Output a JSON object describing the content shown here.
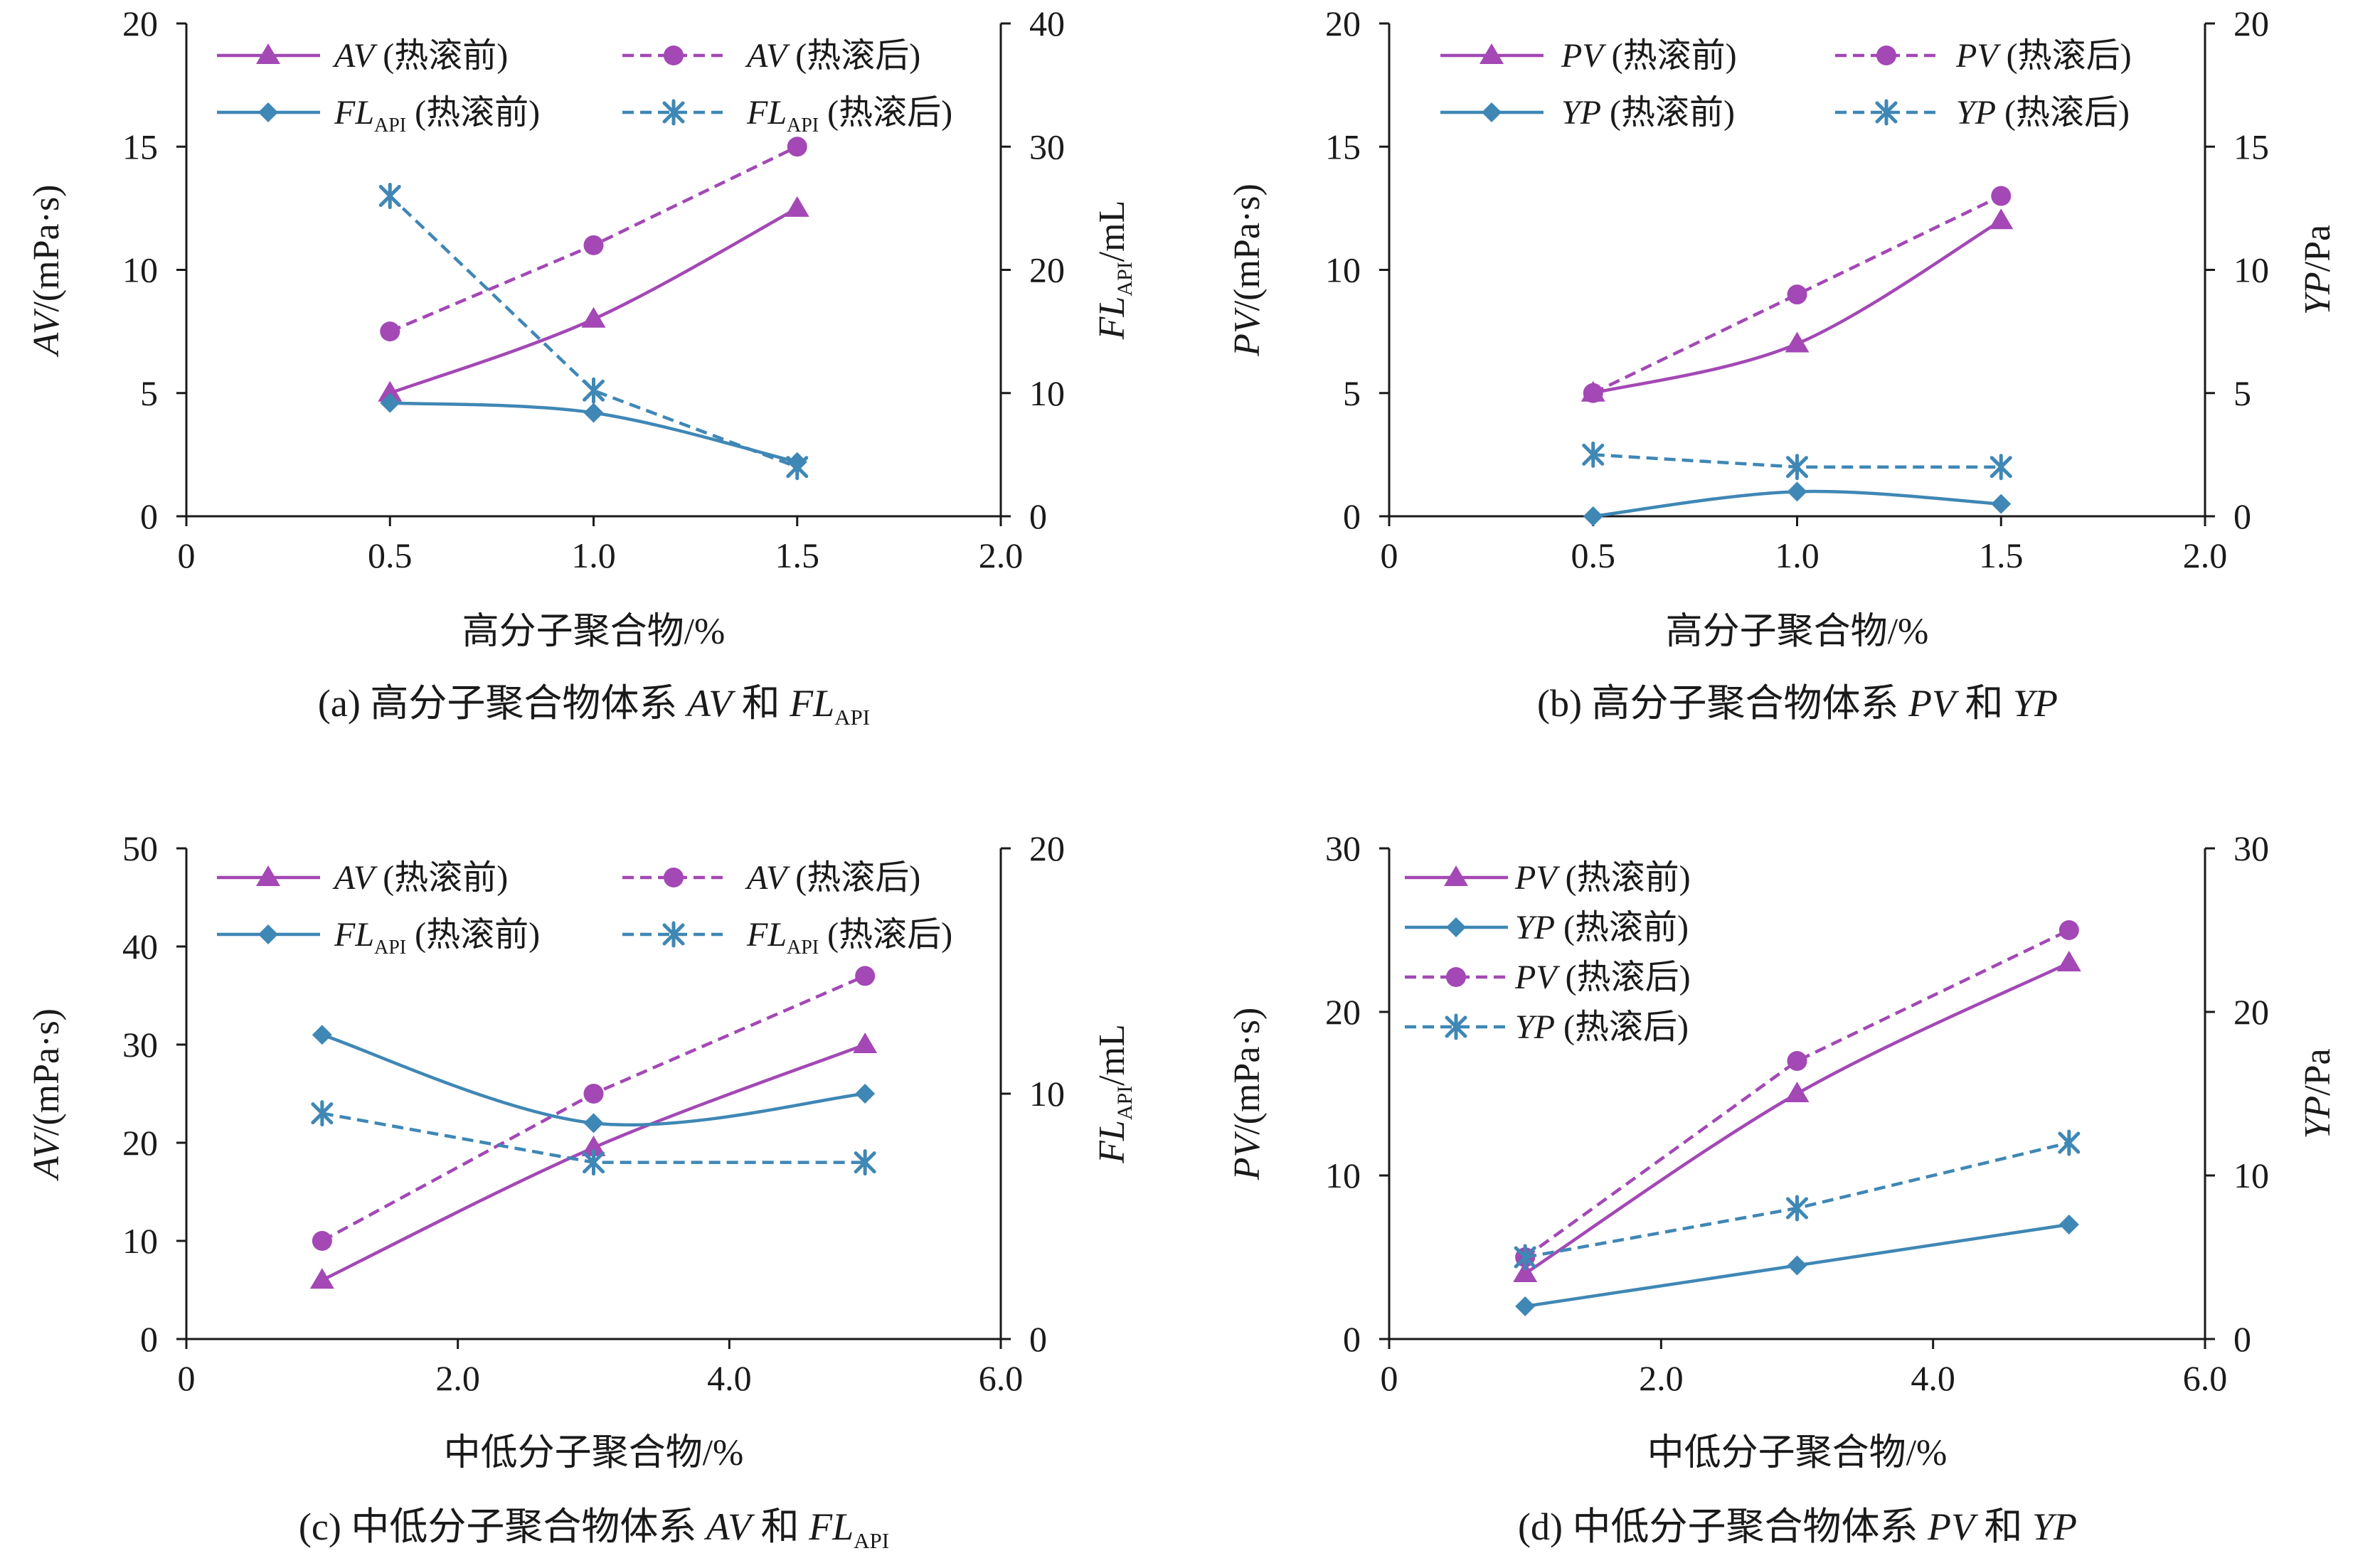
{
  "colors": {
    "purple": "#a348b5",
    "blue": "#3f87b5",
    "axis": "#1a1a1a"
  },
  "chart_data": [
    {
      "type": "line",
      "caption": {
        "prefix": "(a) 高分子聚合物体系 ",
        "v1": "AV",
        "mid": " 和 ",
        "v2": "FL",
        "v2sub": "API"
      },
      "xlabel": "高分子聚合物/%",
      "ylabel": {
        "var": "AV",
        "sub": "",
        "unit": "/(mPa·s)"
      },
      "y2label": {
        "var": "FL",
        "sub": "API",
        "unit": "/mL"
      },
      "xlim": [
        0,
        2.0
      ],
      "xticks": [
        "0",
        "0.5",
        "1.0",
        "1.5",
        "2.0"
      ],
      "ylim": [
        0,
        20
      ],
      "yticks": [
        "0",
        "5",
        "10",
        "15",
        "20"
      ],
      "y2lim": [
        0,
        40
      ],
      "y2ticks": [
        "0",
        "10",
        "20",
        "30",
        "40"
      ],
      "legend": {
        "columns": 2,
        "placement": "top"
      },
      "series": [
        {
          "var": "AV",
          "sub": "",
          "note": " (热滚前)",
          "axis": "left",
          "color": "purple",
          "dash": false,
          "marker": "triangle",
          "x": [
            0.5,
            1.0,
            1.5
          ],
          "values": [
            5.0,
            8.0,
            12.5
          ]
        },
        {
          "var": "AV",
          "sub": "",
          "note": " (热滚后)",
          "axis": "left",
          "color": "purple",
          "dash": true,
          "marker": "circle",
          "x": [
            0.5,
            1.0,
            1.5
          ],
          "values": [
            7.5,
            11.0,
            15.0
          ]
        },
        {
          "var": "FL",
          "sub": "API",
          "note": " (热滚前)",
          "axis": "right",
          "color": "blue",
          "dash": false,
          "marker": "diamond",
          "x": [
            0.5,
            1.0,
            1.5
          ],
          "values": [
            9.2,
            8.4,
            4.4
          ]
        },
        {
          "var": "FL",
          "sub": "API",
          "note": " (热滚后)",
          "axis": "right",
          "color": "blue",
          "dash": true,
          "marker": "asterisk",
          "x": [
            0.5,
            1.0,
            1.5
          ],
          "values": [
            26.0,
            10.2,
            4.0
          ]
        }
      ]
    },
    {
      "type": "line",
      "caption": {
        "prefix": "(b) 高分子聚合物体系 ",
        "v1": "PV",
        "mid": " 和 ",
        "v2": "YP",
        "v2sub": ""
      },
      "xlabel": "高分子聚合物/%",
      "ylabel": {
        "var": "PV",
        "sub": "",
        "unit": "/(mPa·s)"
      },
      "y2label": {
        "var": "YP",
        "sub": "",
        "unit": "/Pa"
      },
      "xlim": [
        0,
        2.0
      ],
      "xticks": [
        "0",
        "0.5",
        "1.0",
        "1.5",
        "2.0"
      ],
      "ylim": [
        0,
        20
      ],
      "yticks": [
        "0",
        "5",
        "10",
        "15",
        "20"
      ],
      "y2lim": [
        0,
        20
      ],
      "y2ticks": [
        "0",
        "5",
        "10",
        "15",
        "20"
      ],
      "legend": {
        "columns": 2,
        "placement": "top"
      },
      "series": [
        {
          "var": "PV",
          "sub": "",
          "note": " (热滚前)",
          "axis": "left",
          "color": "purple",
          "dash": false,
          "marker": "triangle",
          "x": [
            0.5,
            1.0,
            1.5
          ],
          "values": [
            5.0,
            7.0,
            12.0
          ]
        },
        {
          "var": "PV",
          "sub": "",
          "note": " (热滚后)",
          "axis": "left",
          "color": "purple",
          "dash": true,
          "marker": "circle",
          "x": [
            0.5,
            1.0,
            1.5
          ],
          "values": [
            5.0,
            9.0,
            13.0
          ]
        },
        {
          "var": "YP",
          "sub": "",
          "note": " (热滚前)",
          "axis": "right",
          "color": "blue",
          "dash": false,
          "marker": "diamond",
          "x": [
            0.5,
            1.0,
            1.5
          ],
          "values": [
            0.0,
            1.0,
            0.5
          ]
        },
        {
          "var": "YP",
          "sub": "",
          "note": " (热滚后)",
          "axis": "right",
          "color": "blue",
          "dash": true,
          "marker": "asterisk",
          "x": [
            0.5,
            1.0,
            1.5
          ],
          "values": [
            2.5,
            2.0,
            2.0
          ]
        }
      ]
    },
    {
      "type": "line",
      "caption": {
        "prefix": "(c) 中低分子聚合物体系 ",
        "v1": "AV",
        "mid": " 和 ",
        "v2": "FL",
        "v2sub": "API"
      },
      "xlabel": "中低分子聚合物/%",
      "ylabel": {
        "var": "AV",
        "sub": "",
        "unit": "/(mPa·s)"
      },
      "y2label": {
        "var": "FL",
        "sub": "API",
        "unit": "/mL"
      },
      "xlim": [
        0,
        6.0
      ],
      "xticks": [
        "0",
        "2.0",
        "4.0",
        "6.0"
      ],
      "ylim": [
        0,
        50
      ],
      "yticks": [
        "0",
        "10",
        "20",
        "30",
        "40",
        "50"
      ],
      "y2lim": [
        0,
        20
      ],
      "y2ticks": [
        "0",
        "10",
        "20"
      ],
      "legend": {
        "columns": 2,
        "placement": "top"
      },
      "series": [
        {
          "var": "AV",
          "sub": "",
          "note": " (热滚前)",
          "axis": "left",
          "color": "purple",
          "dash": false,
          "marker": "triangle",
          "x": [
            1.0,
            3.0,
            5.0
          ],
          "values": [
            6.0,
            19.5,
            30.0
          ]
        },
        {
          "var": "AV",
          "sub": "",
          "note": " (热滚后)",
          "axis": "left",
          "color": "purple",
          "dash": true,
          "marker": "circle",
          "x": [
            1.0,
            3.0,
            5.0
          ],
          "values": [
            10.0,
            25.0,
            37.0
          ]
        },
        {
          "var": "FL",
          "sub": "API",
          "note": " (热滚前)",
          "axis": "right",
          "color": "blue",
          "dash": false,
          "marker": "diamond",
          "x": [
            1.0,
            3.0,
            5.0
          ],
          "values": [
            12.4,
            8.8,
            10.0
          ]
        },
        {
          "var": "FL",
          "sub": "API",
          "note": " (热滚后)",
          "axis": "right",
          "color": "blue",
          "dash": true,
          "marker": "asterisk",
          "x": [
            1.0,
            3.0,
            5.0
          ],
          "values": [
            9.2,
            7.2,
            7.2
          ]
        }
      ]
    },
    {
      "type": "line",
      "caption": {
        "prefix": "(d) 中低分子聚合物体系 ",
        "v1": "PV",
        "mid": " 和 ",
        "v2": "YP",
        "v2sub": ""
      },
      "xlabel": "中低分子聚合物/%",
      "ylabel": {
        "var": "PV",
        "sub": "",
        "unit": "/(mPa·s)"
      },
      "y2label": {
        "var": "YP",
        "sub": "",
        "unit": "/Pa"
      },
      "xlim": [
        0,
        6.0
      ],
      "xticks": [
        "0",
        "2.0",
        "4.0",
        "6.0"
      ],
      "ylim": [
        0,
        30
      ],
      "yticks": [
        "0",
        "10",
        "20",
        "30"
      ],
      "y2lim": [
        0,
        30
      ],
      "y2ticks": [
        "0",
        "10",
        "20",
        "30"
      ],
      "legend": {
        "columns": 1,
        "placement": "top-left"
      },
      "series": [
        {
          "var": "PV",
          "sub": "",
          "note": " (热滚前)",
          "axis": "left",
          "color": "purple",
          "dash": false,
          "marker": "triangle",
          "x": [
            1.0,
            3.0,
            5.0
          ],
          "values": [
            4.0,
            15.0,
            23.0
          ]
        },
        {
          "var": "YP",
          "sub": "",
          "note": " (热滚前)",
          "axis": "right",
          "color": "blue",
          "dash": false,
          "marker": "diamond",
          "x": [
            1.0,
            3.0,
            5.0
          ],
          "values": [
            2.0,
            4.5,
            7.0
          ]
        },
        {
          "var": "PV",
          "sub": "",
          "note": " (热滚后)",
          "axis": "left",
          "color": "purple",
          "dash": true,
          "marker": "circle",
          "x": [
            1.0,
            3.0,
            5.0
          ],
          "values": [
            5.0,
            17.0,
            25.0
          ]
        },
        {
          "var": "YP",
          "sub": "",
          "note": " (热滚后)",
          "axis": "right",
          "color": "blue",
          "dash": true,
          "marker": "asterisk",
          "x": [
            1.0,
            3.0,
            5.0
          ],
          "values": [
            5.0,
            8.0,
            12.0
          ]
        }
      ]
    }
  ]
}
